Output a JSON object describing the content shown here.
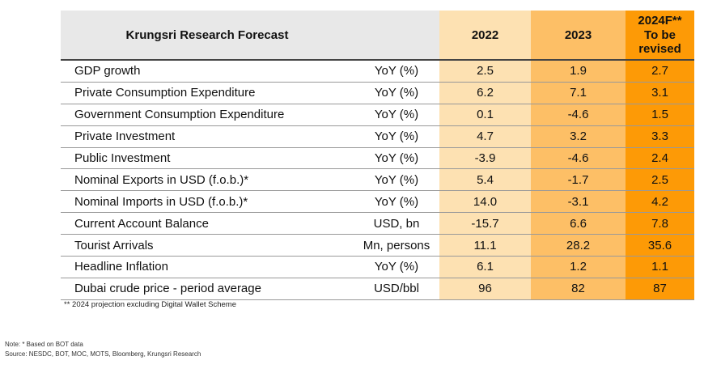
{
  "header": {
    "title": "Krungsri Research Forecast",
    "years": [
      "2022",
      "2023",
      "2024F**"
    ],
    "subtitle_2024": "To be revised"
  },
  "rows": [
    {
      "label": "GDP growth",
      "unit": "YoY (%)",
      "values": [
        "2.5",
        "1.9",
        "2.7"
      ]
    },
    {
      "label": "Private Consumption Expenditure",
      "unit": "YoY (%)",
      "values": [
        "6.2",
        "7.1",
        "3.1"
      ]
    },
    {
      "label": "Government Consumption Expenditure",
      "unit": "YoY (%)",
      "values": [
        "0.1",
        "-4.6",
        "1.5"
      ]
    },
    {
      "label": "Private Investment",
      "unit": "YoY (%)",
      "values": [
        "4.7",
        "3.2",
        "3.3"
      ]
    },
    {
      "label": "Public Investment",
      "unit": "YoY (%)",
      "values": [
        "-3.9",
        "-4.6",
        "2.4"
      ]
    },
    {
      "label": "Nominal Exports in USD (f.o.b.)*",
      "unit": "YoY (%)",
      "values": [
        "5.4",
        "-1.7",
        "2.5"
      ]
    },
    {
      "label": "Nominal Imports in USD (f.o.b.)*",
      "unit": "YoY (%)",
      "values": [
        "14.0",
        "-3.1",
        "4.2"
      ]
    },
    {
      "label": "Current Account Balance",
      "unit": "USD, bn",
      "values": [
        "-15.7",
        "6.6",
        "7.8"
      ]
    },
    {
      "label": "Tourist Arrivals",
      "unit": "Mn, persons",
      "values": [
        "11.1",
        "28.2",
        "35.6"
      ]
    },
    {
      "label": "Headline Inflation",
      "unit": "YoY (%)",
      "values": [
        "6.1",
        "1.2",
        "1.1"
      ]
    },
    {
      "label": "Dubai crude price - period average",
      "unit": "USD/bbl",
      "values": [
        "96",
        "82",
        "87"
      ]
    }
  ],
  "footnote": "** 2024 projection excluding Digital Wallet Scheme",
  "note": "Note: * Based on BOT data",
  "source": "Source: NESDC, BOT, MOC, MOTS, Bloomberg, Krungsri Research",
  "colors": {
    "y2022": "#fde1b2",
    "y2023": "#fdbf66",
    "y2024": "#fd9a06"
  }
}
